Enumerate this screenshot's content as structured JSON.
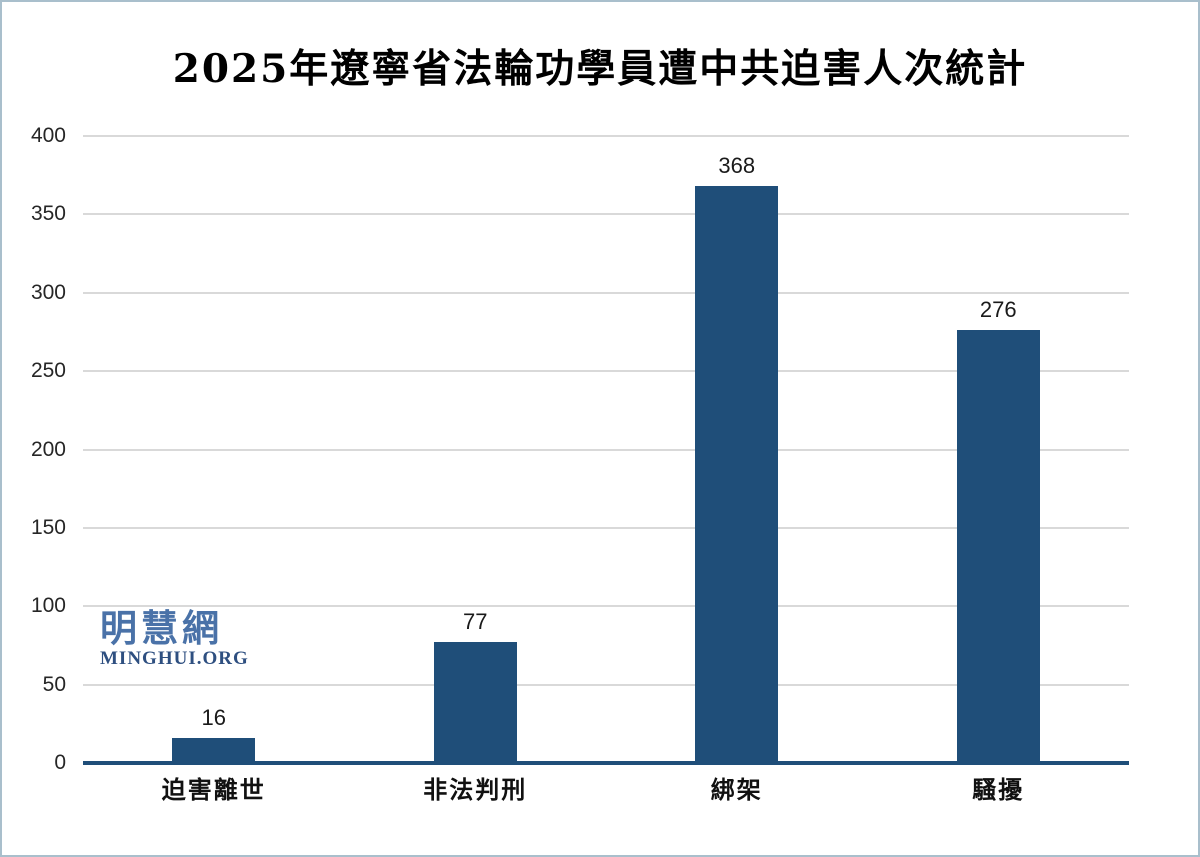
{
  "title": "2025年遼寧省法輪功學員遭中共迫害人次統計",
  "watermark": {
    "cjk": "明慧網",
    "latin": "MINGHUI.ORG"
  },
  "chart_data": {
    "type": "bar",
    "title": "2025年遼寧省法輪功學員遭中共迫害人次統計",
    "categories": [
      "迫害離世",
      "非法判刑",
      "綁架",
      "騷擾"
    ],
    "values": [
      16,
      77,
      368,
      276
    ],
    "value_labels": [
      "16",
      "77",
      "368",
      "276"
    ],
    "xlabel": "",
    "ylabel": "",
    "ylim": [
      0,
      400
    ],
    "ytick_step": 50,
    "yticks": [
      0,
      50,
      100,
      150,
      200,
      250,
      300,
      350,
      400
    ],
    "grid": "horizontal",
    "legend_position": "none"
  },
  "colors": {
    "background": "#FFFFFF",
    "frame_border": "#A9BFCC",
    "bar": "#1F4E79",
    "axis_line": "#1F4E79",
    "gridline": "#D9D9D9",
    "title_text": "#000000",
    "tick_text": "#262626",
    "watermark_cjk": "#4A72A8",
    "watermark_latin": "#2E4F80"
  }
}
